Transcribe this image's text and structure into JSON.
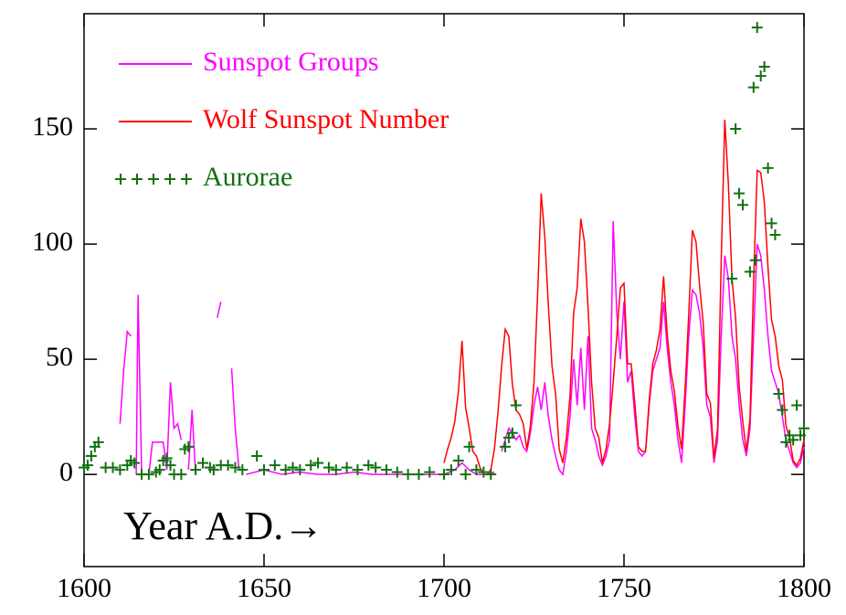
{
  "chart_data": {
    "type": "line",
    "annotation": "Year A.D.→",
    "xlim": [
      1600,
      1800
    ],
    "ylim": [
      -40,
      200
    ],
    "xticks": [
      1600,
      1650,
      1700,
      1750,
      1800
    ],
    "yticks": [
      0,
      50,
      100,
      150
    ],
    "series": [
      {
        "name": "Sunspot Groups",
        "color": "#ff00ff",
        "kind": "line",
        "x": [
          1610,
          1611,
          1612,
          1613,
          1613.5,
          1614.5,
          1615,
          1616,
          1617,
          1618,
          1619,
          1620,
          1621,
          1622,
          1623,
          1624,
          1625,
          1626,
          1627,
          1628,
          1629,
          1630,
          1631,
          1632,
          1637,
          1638,
          1639,
          1641,
          1642,
          1643,
          1644,
          1645,
          1650,
          1655,
          1660,
          1665,
          1670,
          1675,
          1680,
          1685,
          1690,
          1695,
          1700,
          1703,
          1705,
          1707,
          1709,
          1712,
          1714,
          1715,
          1716,
          1717,
          1718,
          1719,
          1720,
          1721,
          1722,
          1723,
          1724,
          1725,
          1726,
          1727,
          1728,
          1729,
          1730,
          1731,
          1732,
          1733,
          1734,
          1735,
          1736,
          1737,
          1738,
          1739,
          1740,
          1741,
          1742,
          1743,
          1744,
          1745,
          1746,
          1747,
          1748,
          1749,
          1750,
          1751,
          1752,
          1753,
          1754,
          1755,
          1756,
          1757,
          1758,
          1759,
          1760,
          1761,
          1762,
          1763,
          1764,
          1765,
          1766,
          1767,
          1768,
          1769,
          1770,
          1771,
          1772,
          1773,
          1774,
          1775,
          1776,
          1777,
          1778,
          1779,
          1780,
          1781,
          1782,
          1783,
          1784,
          1785,
          1786,
          1787,
          1788,
          1789,
          1790,
          1791,
          1792,
          1793,
          1794,
          1795,
          1796,
          1797,
          1798,
          1799,
          1800
        ],
        "values": [
          22,
          45,
          62,
          60,
          null,
          0,
          78,
          0,
          0,
          0,
          14,
          14,
          14,
          14,
          2,
          40,
          20,
          22,
          15,
          null,
          2,
          28,
          0,
          null,
          68,
          75,
          null,
          46,
          20,
          3,
          null,
          0,
          2,
          0,
          1,
          0,
          0,
          1,
          0,
          0,
          0,
          0,
          0,
          2,
          5,
          2,
          0,
          0,
          1,
          null,
          10,
          15,
          20,
          18,
          15,
          17,
          12,
          10,
          18,
          30,
          38,
          28,
          40,
          25,
          15,
          8,
          2,
          0,
          10,
          25,
          50,
          30,
          55,
          28,
          60,
          20,
          15,
          8,
          4,
          8,
          15,
          110,
          70,
          50,
          75,
          40,
          45,
          25,
          10,
          8,
          10,
          30,
          45,
          50,
          55,
          75,
          55,
          40,
          30,
          15,
          5,
          30,
          60,
          80,
          78,
          70,
          55,
          30,
          25,
          5,
          15,
          60,
          95,
          85,
          60,
          50,
          30,
          15,
          8,
          20,
          60,
          100,
          95,
          80,
          60,
          45,
          40,
          35,
          25,
          15,
          10,
          5,
          3,
          5,
          12
        ]
      },
      {
        "name": "Wolf Sunspot Number",
        "color": "#ff0000",
        "kind": "line",
        "x": [
          1700,
          1701,
          1702,
          1703,
          1704,
          1705,
          1706,
          1707,
          1708,
          1709,
          1710,
          1711,
          1712,
          1713,
          1714,
          1715,
          1716,
          1717,
          1718,
          1719,
          1720,
          1721,
          1722,
          1723,
          1724,
          1725,
          1726,
          1727,
          1728,
          1729,
          1730,
          1731,
          1732,
          1733,
          1734,
          1735,
          1736,
          1737,
          1738,
          1739,
          1740,
          1741,
          1742,
          1743,
          1744,
          1745,
          1746,
          1747,
          1748,
          1749,
          1750,
          1751,
          1752,
          1753,
          1754,
          1755,
          1756,
          1757,
          1758,
          1759,
          1760,
          1761,
          1762,
          1763,
          1764,
          1765,
          1766,
          1767,
          1768,
          1769,
          1770,
          1771,
          1772,
          1773,
          1774,
          1775,
          1776,
          1777,
          1778,
          1779,
          1780,
          1781,
          1782,
          1783,
          1784,
          1785,
          1786,
          1787,
          1788,
          1789,
          1790,
          1791,
          1792,
          1793,
          1794,
          1795,
          1796,
          1797,
          1798,
          1799,
          1800
        ],
        "values": [
          5,
          11,
          16,
          23,
          36,
          58,
          29,
          20,
          10,
          8,
          3,
          0,
          0,
          2,
          11,
          27,
          47,
          63,
          60,
          39,
          28,
          26,
          22,
          11,
          21,
          40,
          78,
          122,
          103,
          73,
          47,
          35,
          11,
          5,
          16,
          34,
          70,
          81,
          111,
          101,
          73,
          40,
          20,
          16,
          5,
          11,
          22,
          40,
          60,
          81,
          83,
          48,
          48,
          31,
          12,
          10,
          10,
          32,
          48,
          54,
          63,
          86,
          61,
          45,
          36,
          21,
          11,
          38,
          70,
          106,
          101,
          82,
          66,
          35,
          31,
          7,
          20,
          92,
          154,
          126,
          85,
          68,
          38,
          23,
          10,
          24,
          83,
          132,
          131,
          118,
          90,
          67,
          60,
          47,
          41,
          21,
          16,
          6,
          4,
          7,
          15
        ]
      },
      {
        "name": "Aurorae",
        "color": "#107010",
        "kind": "scatter",
        "x": [
          1600,
          1601,
          1602,
          1603,
          1604,
          1606,
          1608,
          1610,
          1612,
          1613,
          1614,
          1616,
          1618,
          1620,
          1621,
          1622,
          1623,
          1624,
          1625,
          1627,
          1628,
          1629,
          1631,
          1633,
          1635,
          1636,
          1638,
          1640,
          1642,
          1644,
          1648,
          1650,
          1653,
          1656,
          1658,
          1660,
          1663,
          1665,
          1668,
          1670,
          1673,
          1676,
          1679,
          1681,
          1684,
          1687,
          1690,
          1693,
          1696,
          1700,
          1702,
          1704,
          1706,
          1707,
          1709,
          1711,
          1713,
          1717,
          1718,
          1719,
          1720,
          1780,
          1781,
          1782,
          1783,
          1785,
          1786,
          1786.5,
          1787,
          1788,
          1789,
          1790,
          1791,
          1792,
          1793,
          1794,
          1795,
          1796,
          1797,
          1798,
          1799,
          1800
        ],
        "values": [
          3,
          4,
          8,
          12,
          14,
          3,
          3,
          2,
          4,
          6,
          5,
          0,
          0,
          1,
          2,
          6,
          7,
          4,
          0,
          0,
          11,
          12,
          2,
          5,
          3,
          2,
          4,
          4,
          3,
          2,
          8,
          2,
          4,
          2,
          3,
          2,
          4,
          5,
          3,
          2,
          3,
          2,
          4,
          3,
          2,
          1,
          0,
          0,
          1,
          0,
          2,
          6,
          0,
          12,
          2,
          1,
          0,
          12,
          16,
          18,
          30,
          85,
          150,
          122,
          117,
          88,
          168,
          93,
          194,
          173,
          177,
          133,
          109,
          104,
          35,
          28,
          14,
          17,
          15,
          30,
          17,
          20
        ]
      }
    ]
  }
}
